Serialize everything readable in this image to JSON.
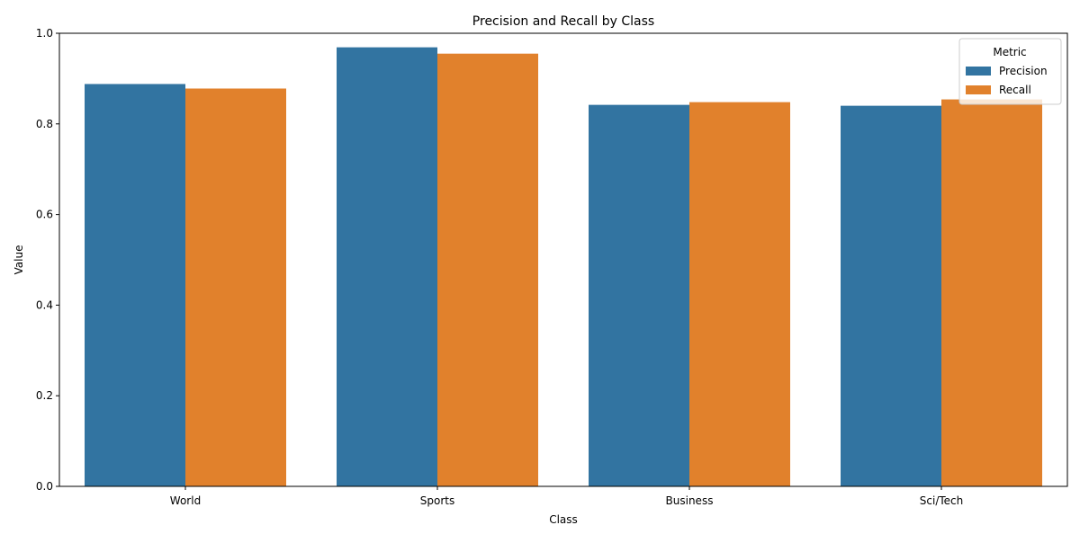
{
  "chart_data": {
    "type": "bar",
    "title": "Precision and Recall by Class",
    "xlabel": "Class",
    "ylabel": "Value",
    "categories": [
      "World",
      "Sports",
      "Business",
      "Sci/Tech"
    ],
    "series": [
      {
        "name": "Precision",
        "color": "#3274a1",
        "values": [
          0.888,
          0.969,
          0.842,
          0.84
        ]
      },
      {
        "name": "Recall",
        "color": "#e1812c",
        "values": [
          0.878,
          0.955,
          0.848,
          0.854
        ]
      }
    ],
    "ylim": [
      0,
      1.0
    ],
    "yticks": [
      0.0,
      0.2,
      0.4,
      0.6,
      0.8,
      1.0
    ],
    "ytick_labels": [
      "0.0",
      "0.2",
      "0.4",
      "0.6",
      "0.8",
      "1.0"
    ],
    "grid": false,
    "legend": {
      "title": "Metric",
      "placement": "top-right"
    }
  }
}
